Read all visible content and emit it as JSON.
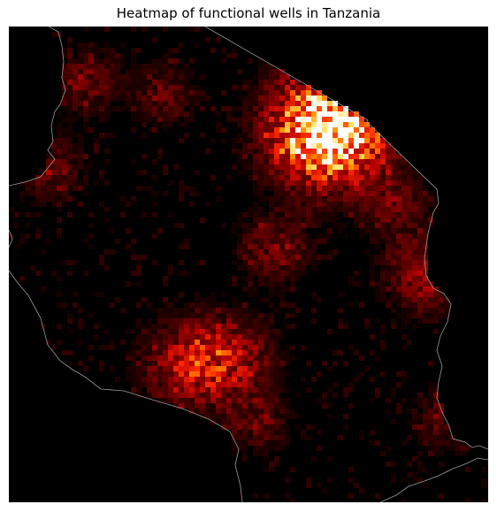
{
  "title": "Heatmap of functional wells in Tanzania",
  "colors": {
    "background": "#000000",
    "border_line": "#9a9a9a",
    "colormap": [
      "#000000",
      "#5a0000",
      "#b40000",
      "#ff2a00",
      "#ff8c00",
      "#ffe060",
      "#ffffff"
    ]
  },
  "map": {
    "country": "Tanzania",
    "border_style": "thin grey outline",
    "colormap_name": "hot"
  },
  "chart_data": {
    "type": "heatmap",
    "title": "Heatmap of functional wells in Tanzania",
    "xlabel": "",
    "ylabel": "",
    "grid": false,
    "legend": "none",
    "colorbar": false,
    "hotspots": [
      {
        "lon": 36.7,
        "lat": -3.4,
        "intensity": 1.0
      },
      {
        "lon": 37.3,
        "lat": -3.3,
        "intensity": 0.95
      },
      {
        "lon": 36.9,
        "lat": -3.35,
        "intensity": 0.85
      },
      {
        "lon": 33.6,
        "lat": -9.0,
        "intensity": 0.7
      },
      {
        "lon": 34.6,
        "lat": -8.9,
        "intensity": 0.65
      },
      {
        "lon": 39.3,
        "lat": -6.8,
        "intensity": 0.6
      },
      {
        "lon": 35.7,
        "lat": -6.2,
        "intensity": 0.45
      },
      {
        "lon": 30.3,
        "lat": -4.3,
        "intensity": 0.4
      },
      {
        "lon": 31.2,
        "lat": -2.2,
        "intensity": 0.4
      },
      {
        "lon": 33.0,
        "lat": -2.5,
        "intensity": 0.35
      },
      {
        "lon": 38.5,
        "lat": -5.1,
        "intensity": 0.4
      },
      {
        "lon": 35.3,
        "lat": -10.4,
        "intensity": 0.35
      },
      {
        "lon": 39.8,
        "lat": -10.3,
        "intensity": 0.35
      }
    ]
  }
}
